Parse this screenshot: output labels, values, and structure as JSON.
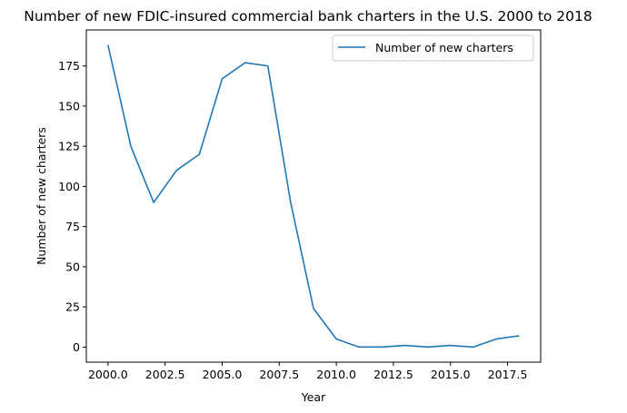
{
  "chart_data": {
    "type": "line",
    "title": "Number of new FDIC-insured commercial bank charters in the U.S. 2000 to 2018",
    "xlabel": "Year",
    "ylabel": "Number of new charters",
    "xlim": [
      1999.05,
      2018.95
    ],
    "ylim": [
      -9.4,
      197.4
    ],
    "x_ticks": [
      2000.0,
      2002.5,
      2005.0,
      2007.5,
      2010.0,
      2012.5,
      2015.0,
      2017.5
    ],
    "x_tick_labels": [
      "2000.0",
      "2002.5",
      "2005.0",
      "2007.5",
      "2010.0",
      "2012.5",
      "2015.0",
      "2017.5"
    ],
    "y_ticks": [
      0,
      25,
      50,
      75,
      100,
      125,
      150,
      175
    ],
    "y_tick_labels": [
      "0",
      "25",
      "50",
      "75",
      "100",
      "125",
      "150",
      "175"
    ],
    "legend_position": "top-right",
    "grid": false,
    "series": [
      {
        "name": "Number of new charters",
        "color": "#1f77b4",
        "x": [
          2000,
          2001,
          2002,
          2003,
          2004,
          2005,
          2006,
          2007,
          2008,
          2009,
          2010,
          2011,
          2012,
          2013,
          2014,
          2015,
          2016,
          2017,
          2018
        ],
        "values": [
          188,
          125,
          90,
          110,
          120,
          167,
          177,
          175,
          90,
          24,
          5,
          0,
          0,
          1,
          0,
          1,
          0,
          5,
          7
        ]
      }
    ]
  }
}
